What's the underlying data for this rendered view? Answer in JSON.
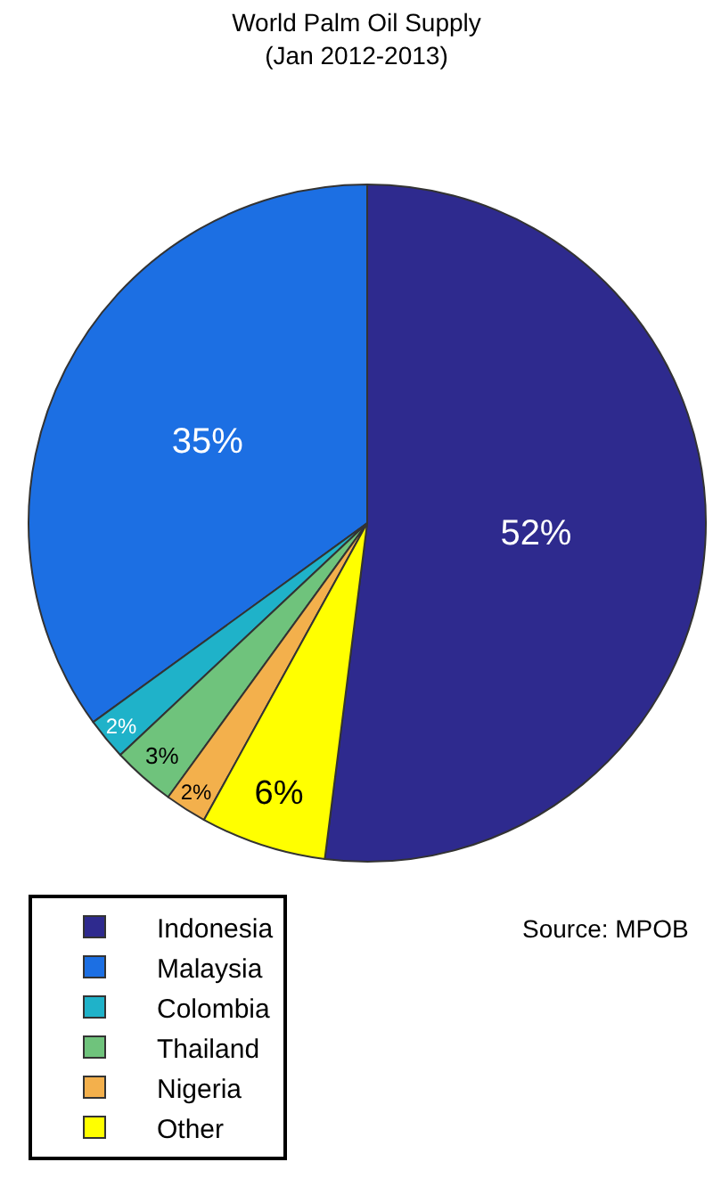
{
  "chart_data": {
    "type": "pie",
    "title": "World Palm Oil Supply",
    "subtitle": "(Jan 2012-2013)",
    "categories": [
      "Indonesia",
      "Malaysia",
      "Colombia",
      "Thailand",
      "Nigeria",
      "Other"
    ],
    "values": [
      52,
      35,
      2,
      3,
      2,
      6
    ],
    "colors": [
      "#2e2a8e",
      "#1c6fe3",
      "#1fb2c9",
      "#6fc37c",
      "#f3b04c",
      "#ffff00"
    ],
    "value_labels": [
      "52%",
      "35%",
      "2%",
      "3%",
      "2%",
      "6%"
    ],
    "legend": "bottom left",
    "annotations": [
      "Source: MPOB"
    ]
  }
}
